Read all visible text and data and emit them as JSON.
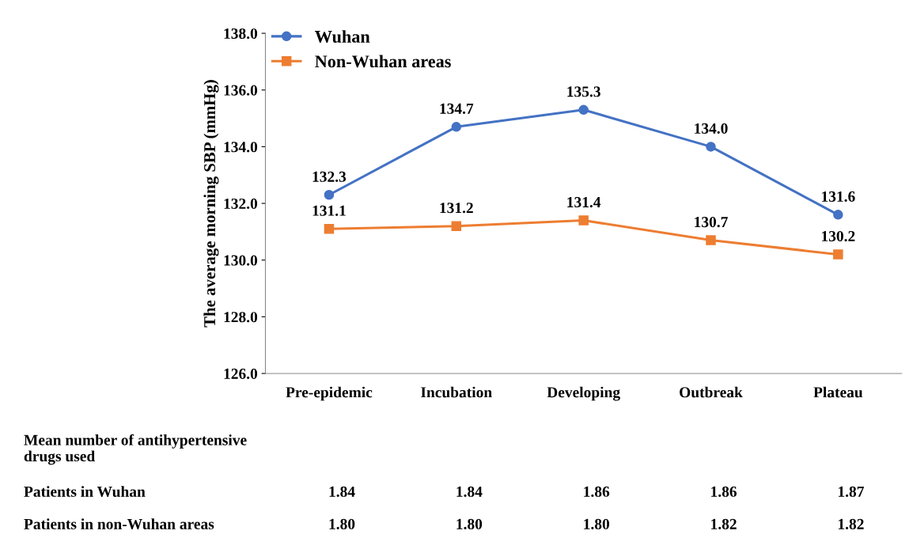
{
  "chart_data": {
    "type": "line",
    "categories": [
      "Pre-epidemic",
      "Incubation",
      "Developing",
      "Outbreak",
      "Plateau"
    ],
    "ylabel": "The average morning SBP (mmHg)",
    "ylim": [
      126,
      138
    ],
    "yticks": [
      {
        "value": 126,
        "label": "126.0"
      },
      {
        "value": 128,
        "label": "128.0"
      },
      {
        "value": 130,
        "label": "130.0"
      },
      {
        "value": 132,
        "label": "132.0"
      },
      {
        "value": 134,
        "label": "134.0"
      },
      {
        "value": 136,
        "label": "136.0"
      },
      {
        "value": 138,
        "label": "138.0"
      }
    ],
    "series": [
      {
        "name": "Wuhan",
        "color": "#4472c4",
        "marker": "circle",
        "values": [
          132.3,
          134.7,
          135.3,
          134.0,
          131.6
        ],
        "value_labels": [
          "132.3",
          "134.7",
          "135.3",
          "134.0",
          "131.6"
        ]
      },
      {
        "name": "Non-Wuhan areas",
        "color": "#ed7d31",
        "marker": "square",
        "values": [
          131.1,
          131.2,
          131.4,
          130.7,
          130.2
        ],
        "value_labels": [
          "131.1",
          "131.2",
          "131.4",
          "130.7",
          "130.2"
        ]
      }
    ],
    "legend": "top left",
    "grid": false,
    "annotations": [
      "Mean number of antihypertensive\ndrugs used",
      "Patients in Wuhan",
      "1.84",
      "1.84",
      "1.86",
      "1.86",
      "1.87",
      "Patients in non-Wuhan areas",
      "1.80",
      "1.80",
      "1.80",
      "1.82",
      "1.82"
    ]
  }
}
